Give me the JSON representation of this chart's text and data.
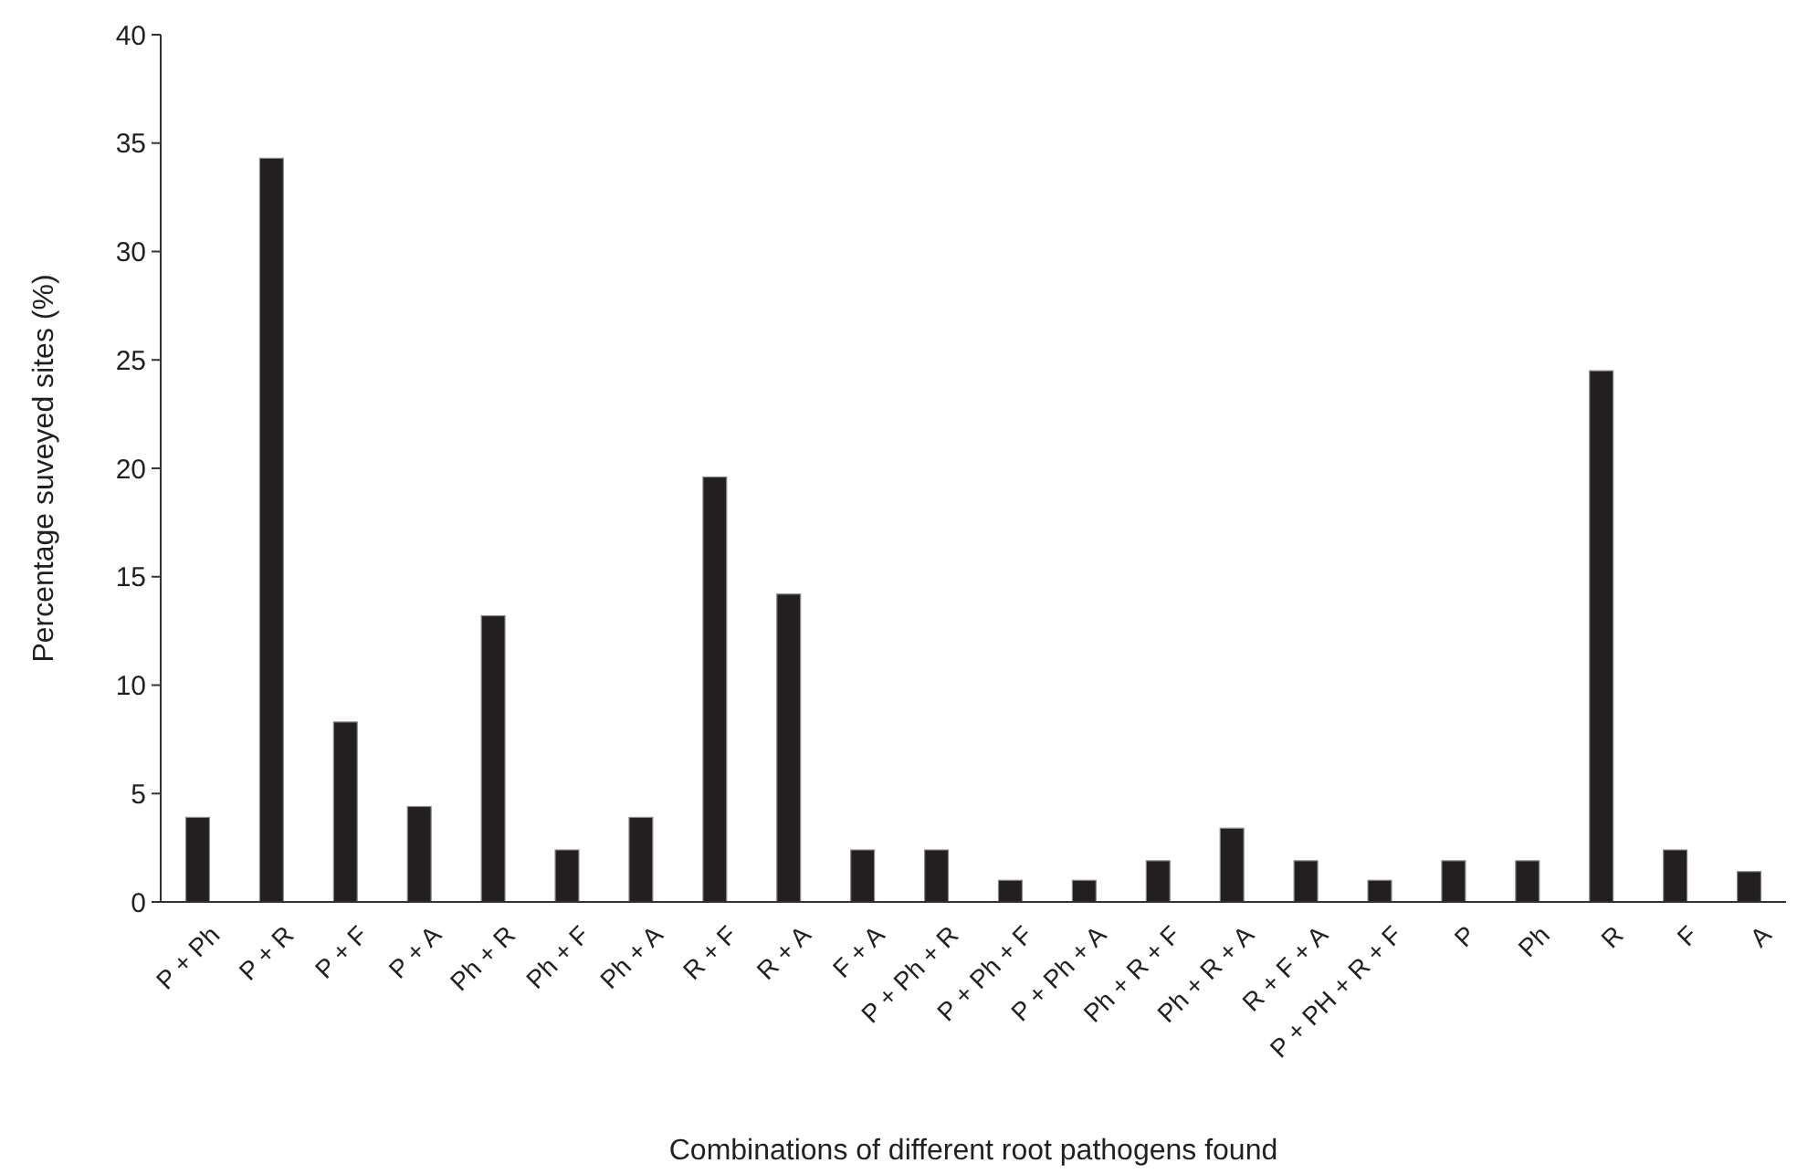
{
  "chart_data": {
    "type": "bar",
    "xlabel": "Combinations of different root pathogens found",
    "ylabel": "Percentage suveyed sites (%)",
    "categories": [
      "P + Ph",
      "P + R",
      "P + F",
      "P + A",
      "Ph + R",
      "Ph + F",
      "Ph + A",
      "R + F",
      "R + A",
      "F + A",
      "P + Ph + R",
      "P + Ph + F",
      "P + Ph + A",
      "Ph + R + F",
      "Ph + R + A",
      "R + F + A",
      "P + PH + R + F",
      "P",
      "Ph",
      "R",
      "F",
      "A"
    ],
    "values": [
      3.9,
      34.3,
      8.3,
      4.4,
      13.2,
      2.4,
      3.9,
      19.6,
      14.2,
      2.4,
      2.4,
      1.0,
      1.0,
      1.9,
      3.4,
      1.9,
      1.0,
      1.9,
      1.9,
      24.5,
      2.4,
      1.4
    ],
    "color": "#231f20",
    "ylim": [
      0,
      40
    ],
    "yticks": [
      0,
      5,
      10,
      15,
      20,
      25,
      30,
      35,
      40
    ],
    "grid": false
  }
}
